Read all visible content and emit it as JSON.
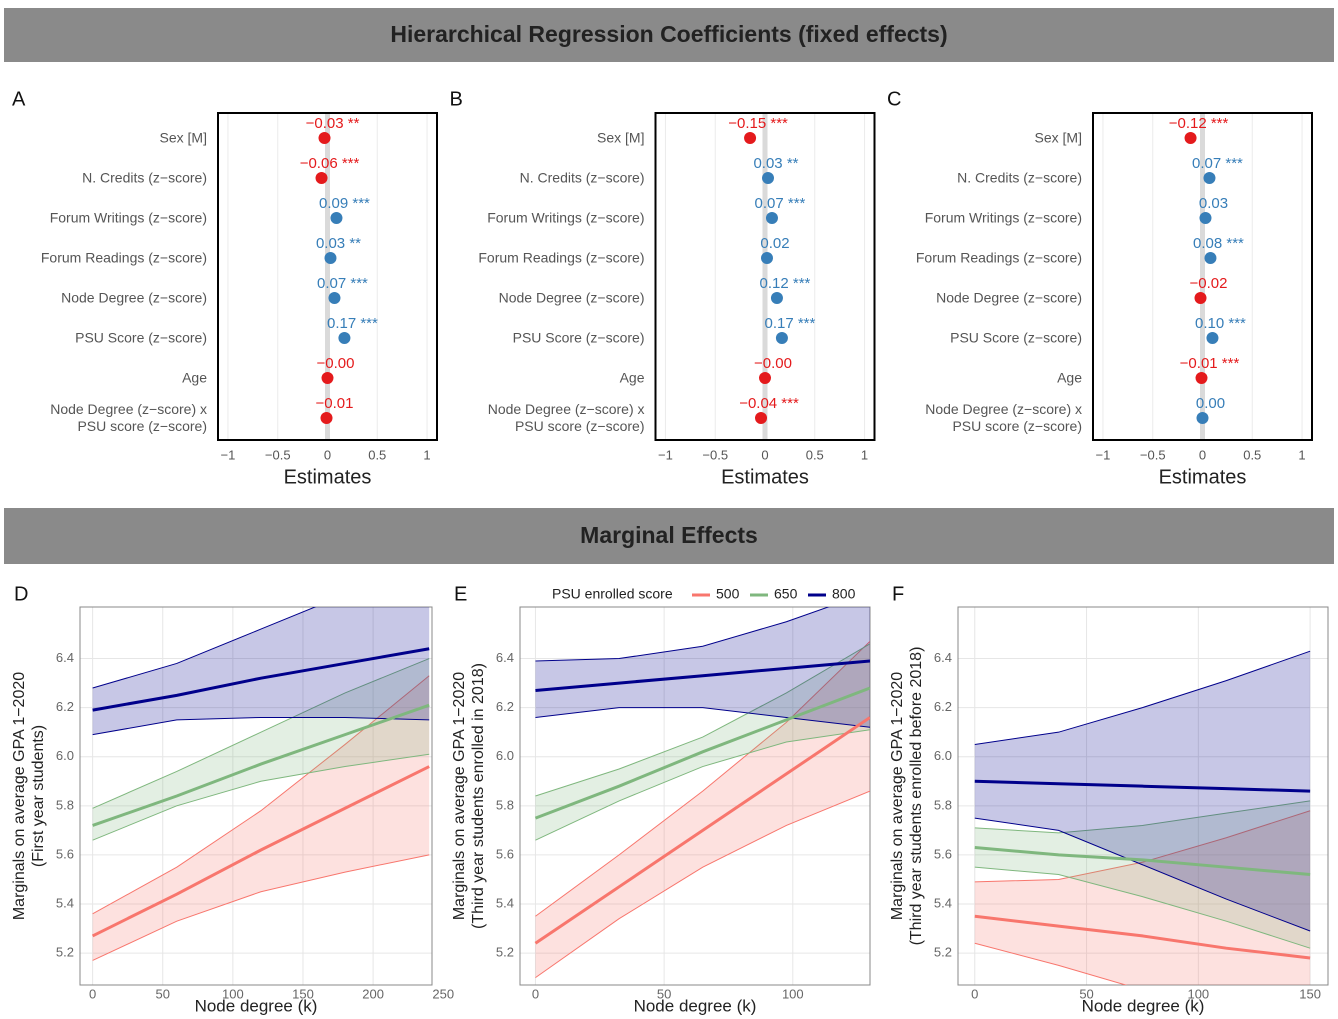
{
  "header": {
    "title": "Hierarchical Regression Coefficients (fixed effects)",
    "subtitle": "Marginal Effects"
  },
  "chart_data": [
    {
      "type": "dot",
      "panel": "A",
      "xlabel": "Estimates",
      "categories": [
        "Sex [M]",
        "N. Credits (z−score)",
        "Forum Writings (z−score)",
        "Forum Readings (z−score)",
        "Node Degree (z−score)",
        "PSU Score (z−score)",
        "Age",
        "Node Degree (z−score) x\nPSU score (z−score)"
      ],
      "values": [
        -0.03,
        -0.06,
        0.09,
        0.03,
        0.07,
        0.17,
        0,
        -0.01
      ],
      "value_labels": [
        "−0.03 **",
        "−0.06 ***",
        "0.09 ***",
        "0.03 **",
        "0.07 ***",
        "0.17 ***",
        "−0.00",
        "−0.01"
      ],
      "colors": [
        "#e41a1c",
        "#e41a1c",
        "#377eb8",
        "#377eb8",
        "#377eb8",
        "#377eb8",
        "#e41a1c",
        "#e41a1c"
      ],
      "xlim": [
        -1.1,
        1.1
      ],
      "xticks": [
        {
          "value": -1,
          "label": "−1"
        },
        {
          "value": -0.5,
          "label": "−0.5"
        },
        0,
        0.5,
        1
      ],
      "grid": true
    },
    {
      "type": "dot",
      "panel": "B",
      "xlabel": "Estimates",
      "categories": [
        "Sex [M]",
        "N. Credits (z−score)",
        "Forum Writings (z−score)",
        "Forum Readings (z−score)",
        "Node Degree (z−score)",
        "PSU Score (z−score)",
        "Age",
        "Node Degree (z−score) x\nPSU score (z−score)"
      ],
      "values": [
        -0.15,
        0.03,
        0.07,
        0.02,
        0.12,
        0.17,
        0,
        -0.04
      ],
      "value_labels": [
        "−0.15 ***",
        "0.03 **",
        "0.07 ***",
        "0.02",
        "0.12 ***",
        "0.17 ***",
        "−0.00",
        "−0.04 ***"
      ],
      "colors": [
        "#e41a1c",
        "#377eb8",
        "#377eb8",
        "#377eb8",
        "#377eb8",
        "#377eb8",
        "#e41a1c",
        "#e41a1c"
      ],
      "xlim": [
        -1.1,
        1.1
      ],
      "xticks": [
        {
          "value": -1,
          "label": "−1"
        },
        {
          "value": -0.5,
          "label": "−0.5"
        },
        0,
        0.5,
        1
      ],
      "grid": true
    },
    {
      "type": "dot",
      "panel": "C",
      "xlabel": "Estimates",
      "categories": [
        "Sex [M]",
        "N. Credits (z−score)",
        "Forum Writings (z−score)",
        "Forum Readings (z−score)",
        "Node Degree (z−score)",
        "PSU Score (z−score)",
        "Age",
        "Node Degree (z−score) x\nPSU score (z−score)"
      ],
      "values": [
        -0.12,
        0.07,
        0.03,
        0.08,
        -0.02,
        0.1,
        -0.01,
        0
      ],
      "value_labels": [
        "−0.12 ***",
        "0.07 ***",
        "0.03",
        "0.08 ***",
        "−0.02",
        "0.10 ***",
        "−0.01 ***",
        "0.00"
      ],
      "colors": [
        "#e41a1c",
        "#377eb8",
        "#377eb8",
        "#377eb8",
        "#e41a1c",
        "#377eb8",
        "#e41a1c",
        "#377eb8"
      ],
      "xlim": [
        -1.1,
        1.1
      ],
      "xticks": [
        {
          "value": -1,
          "label": "−1"
        },
        {
          "value": -0.5,
          "label": "−0.5"
        },
        0,
        0.5,
        1
      ],
      "grid": true
    },
    {
      "type": "line",
      "panel": "D",
      "xlabel": "Node degree (k)",
      "ylabel": [
        "Marginals on average GPA 1−2020",
        "(First year students)"
      ],
      "x": [
        0,
        60,
        120,
        180,
        240
      ],
      "series": [
        {
          "name": "500",
          "color": "#f8766d",
          "values": [
            5.27,
            5.44,
            5.62,
            5.79,
            5.96
          ],
          "lower": [
            5.17,
            5.33,
            5.45,
            5.53,
            5.6
          ],
          "upper": [
            5.36,
            5.55,
            5.78,
            6.05,
            6.33
          ]
        },
        {
          "name": "650",
          "color": "#7fb77e",
          "values": [
            5.72,
            5.84,
            5.97,
            6.09,
            6.21
          ],
          "lower": [
            5.66,
            5.8,
            5.9,
            5.96,
            6.01
          ],
          "upper": [
            5.79,
            5.94,
            6.1,
            6.26,
            6.4
          ]
        },
        {
          "name": "800",
          "color": "#00008b",
          "values": [
            6.19,
            6.25,
            6.32,
            6.38,
            6.44
          ],
          "lower": [
            6.09,
            6.15,
            6.16,
            6.16,
            6.15
          ],
          "upper": [
            6.28,
            6.38,
            6.52,
            6.66,
            6.8
          ]
        }
      ],
      "xlim": [
        -9,
        242
      ],
      "xticks": [
        0,
        50,
        100,
        150,
        200,
        250
      ],
      "ylim": [
        5.07,
        6.61
      ],
      "yticks": [
        5.2,
        5.4,
        5.6,
        5.8,
        {
          "value": 6,
          "label": "6.0"
        },
        6.2,
        6.4
      ],
      "grid": true
    },
    {
      "type": "line",
      "panel": "E",
      "xlabel": "Node degree (k)",
      "ylabel": [
        "Marginals on average GPA 1−2020",
        "(Third year students enrolled in 2018)"
      ],
      "legend_title": "PSU enrolled score",
      "x": [
        0,
        32.5,
        65,
        97.5,
        130
      ],
      "series": [
        {
          "name": "500",
          "color": "#f8766d",
          "values": [
            5.24,
            5.47,
            5.7,
            5.93,
            6.16
          ],
          "lower": [
            5.1,
            5.34,
            5.55,
            5.72,
            5.86
          ],
          "upper": [
            5.35,
            5.6,
            5.86,
            6.14,
            6.47
          ]
        },
        {
          "name": "650",
          "color": "#7fb77e",
          "values": [
            5.75,
            5.88,
            6.02,
            6.15,
            6.28
          ],
          "lower": [
            5.66,
            5.82,
            5.96,
            6.06,
            6.11
          ],
          "upper": [
            5.84,
            5.95,
            6.08,
            6.26,
            6.46
          ]
        },
        {
          "name": "800",
          "color": "#00008b",
          "values": [
            6.27,
            6.3,
            6.33,
            6.36,
            6.39
          ],
          "lower": [
            6.16,
            6.2,
            6.2,
            6.16,
            6.12
          ],
          "upper": [
            6.39,
            6.4,
            6.45,
            6.55,
            6.67
          ]
        }
      ],
      "xlim": [
        -6,
        130
      ],
      "xticks": [
        0,
        50,
        100
      ],
      "ylim": [
        5.07,
        6.61
      ],
      "yticks": [
        5.2,
        5.4,
        5.6,
        5.8,
        {
          "value": 6,
          "label": "6.0"
        },
        6.2,
        6.4
      ],
      "grid": true
    },
    {
      "type": "line",
      "panel": "F",
      "xlabel": "Node degree (k)",
      "ylabel": [
        "Marginals on average GPA 1−2020",
        "(Third year students enrolled before 2018)"
      ],
      "x": [
        0,
        37.5,
        75,
        112.5,
        150
      ],
      "series": [
        {
          "name": "500",
          "color": "#f8766d",
          "values": [
            5.35,
            5.31,
            5.27,
            5.22,
            5.18
          ],
          "lower": [
            5.24,
            5.15,
            5.05,
            4.98,
            4.9
          ],
          "upper": [
            5.49,
            5.5,
            5.57,
            5.67,
            5.78
          ]
        },
        {
          "name": "650",
          "color": "#7fb77e",
          "values": [
            5.63,
            5.6,
            5.58,
            5.55,
            5.52
          ],
          "lower": [
            5.55,
            5.52,
            5.43,
            5.33,
            5.22
          ],
          "upper": [
            5.71,
            5.69,
            5.72,
            5.77,
            5.82
          ]
        },
        {
          "name": "800",
          "color": "#00008b",
          "values": [
            5.9,
            5.89,
            5.88,
            5.87,
            5.86
          ],
          "lower": [
            5.75,
            5.7,
            5.56,
            5.42,
            5.29
          ],
          "upper": [
            6.05,
            6.1,
            6.2,
            6.31,
            6.43
          ]
        }
      ],
      "xlim": [
        -7.5,
        158
      ],
      "xticks": [
        0,
        50,
        100,
        150
      ],
      "ylim": [
        5.07,
        6.61
      ],
      "yticks": [
        5.2,
        5.4,
        5.6,
        5.8,
        {
          "value": 6,
          "label": "6.0"
        },
        6.2,
        6.4
      ],
      "grid": true
    }
  ]
}
